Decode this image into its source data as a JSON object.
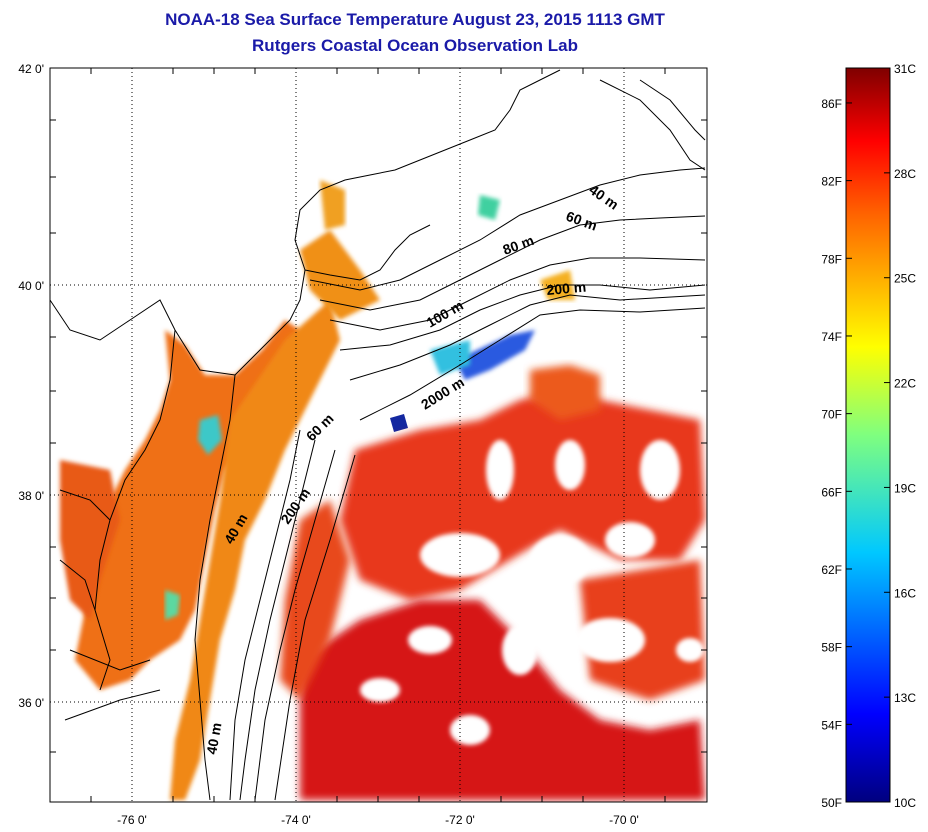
{
  "title": {
    "line1": "NOAA-18 Sea Surface Temperature August 23, 2015 1113 GMT",
    "line2": "Rutgers Coastal Ocean Observation Lab"
  },
  "map": {
    "lon_labels": [
      "-76 0'",
      "-74 0'",
      "-72 0'",
      "-70 0'"
    ],
    "lat_labels": [
      "42 0'",
      "40 0'",
      "38 0'",
      "36 0'"
    ],
    "depth_labels": [
      "40 m",
      "60 m",
      "80 m",
      "200 m",
      "100 m",
      "2000 m",
      "60 m",
      "200 m",
      "40 m",
      "40 m"
    ],
    "colors": {
      "land": "#ffffff",
      "cloud": "#ffffff",
      "warm": "#e8331a",
      "hot": "#d91a14",
      "orange": "#f07a14",
      "cold": "#1a3ad9",
      "cyan": "#22c8d8"
    }
  },
  "colorbar": {
    "fahrenheit_labels": [
      "86F",
      "82F",
      "78F",
      "74F",
      "70F",
      "66F",
      "62F",
      "58F",
      "54F",
      "50F"
    ],
    "celsius_labels": [
      "31C",
      "28C",
      "25C",
      "22C",
      "19C",
      "16C",
      "13C",
      "10C"
    ],
    "range_c": [
      10,
      31
    ],
    "range_f": [
      50,
      88
    ]
  }
}
